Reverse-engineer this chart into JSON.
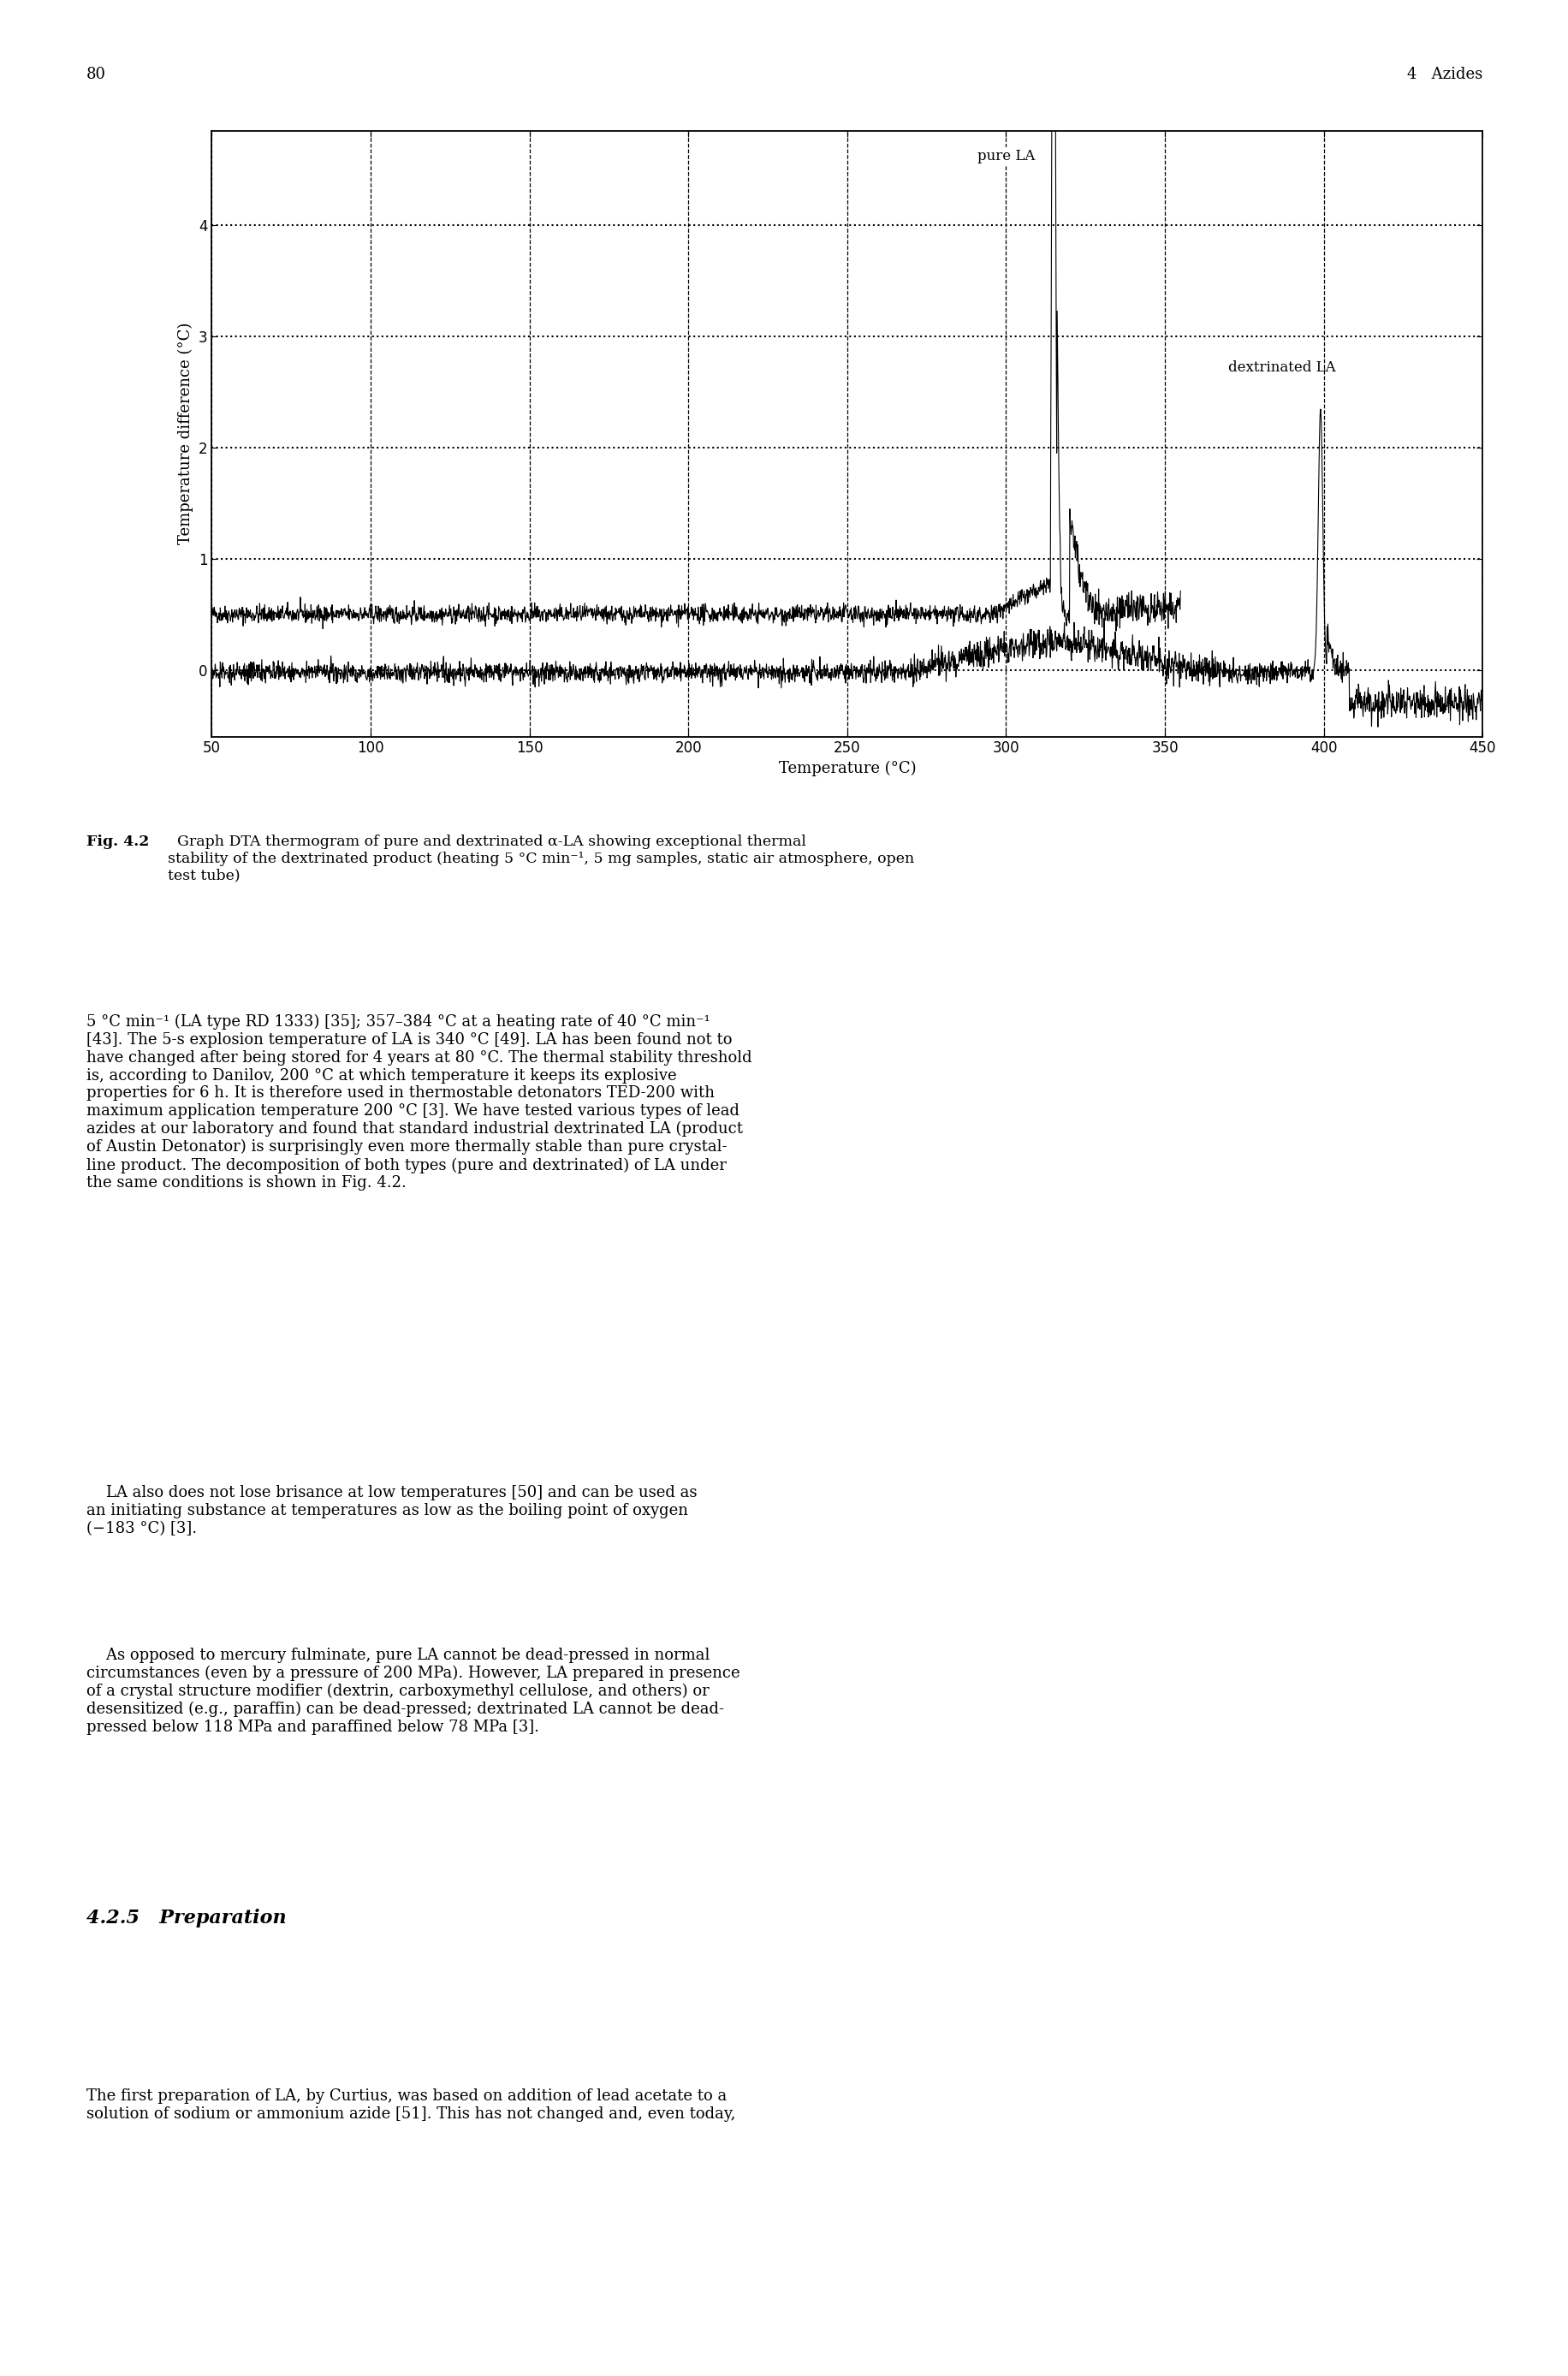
{
  "xlabel": "Temperature (°C)",
  "ylabel": "Temperature difference (°C)",
  "xlim": [
    50,
    450
  ],
  "ylim": [
    -0.6,
    4.85
  ],
  "xticks": [
    50,
    100,
    150,
    200,
    250,
    300,
    350,
    400,
    450
  ],
  "yticks": [
    0,
    1,
    2,
    3,
    4
  ],
  "page_number_left": "80",
  "page_number_right": "4   Azides",
  "label_pure_la": "pure LA",
  "label_dextrinated_la": "dextrinated LA",
  "background_color": "#ffffff",
  "line_color": "#000000",
  "fig_caption_bold": "Fig. 4.2",
  "fig_caption_normal": "  Graph DTA thermogram of pure and dextrinated α-LA showing exceptional thermal\nstability of the dextrinated product (heating 5 °C min⁻¹, 5 mg samples, static air atmosphere, open\ntest tube)",
  "body1": "5 °C min⁻¹ (LA type RD 1333) [35]; 357–384 °C at a heating rate of 40 °C min⁻¹\n[43]. The 5-s explosion temperature of LA is 340 °C [49]. LA has been found not to\nhave changed after being stored for 4 years at 80 °C. The thermal stability threshold\nis, according to Danilov, 200 °C at which temperature it keeps its explosive\nproperties for 6 h. It is therefore used in thermostable detonators TED-200 with\nmaximum application temperature 200 °C [3]. We have tested various types of lead\nazides at our laboratory and found that standard industrial dextrinated LA (product\nof Austin Detonator) is surprisingly even more thermally stable than pure crystal-\nline product. The decomposition of both types (pure and dextrinated) of LA under\nthe same conditions is shown in Fig. 4.2.",
  "body2": "    LA also does not lose brisance at low temperatures [50] and can be used as\nan initiating substance at temperatures as low as the boiling point of oxygen\n(−183 °C) [3].",
  "body3": "    As opposed to mercury fulminate, pure LA cannot be dead-pressed in normal\ncircumstances (even by a pressure of 200 MPa). However, LA prepared in presence\nof a crystal structure modifier (dextrin, carboxymethyl cellulose, and others) or\ndesensitized (e.g., paraffin) can be dead-pressed; dextrinated LA cannot be dead-\npressed below 118 MPa and paraffined below 78 MPa [3].",
  "section_heading": "4.2.5   Preparation",
  "body4": "The first preparation of LA, by Curtius, was based on addition of lead acetate to a\nsolution of sodium or ammonium azide [51]. This has not changed and, even today,"
}
